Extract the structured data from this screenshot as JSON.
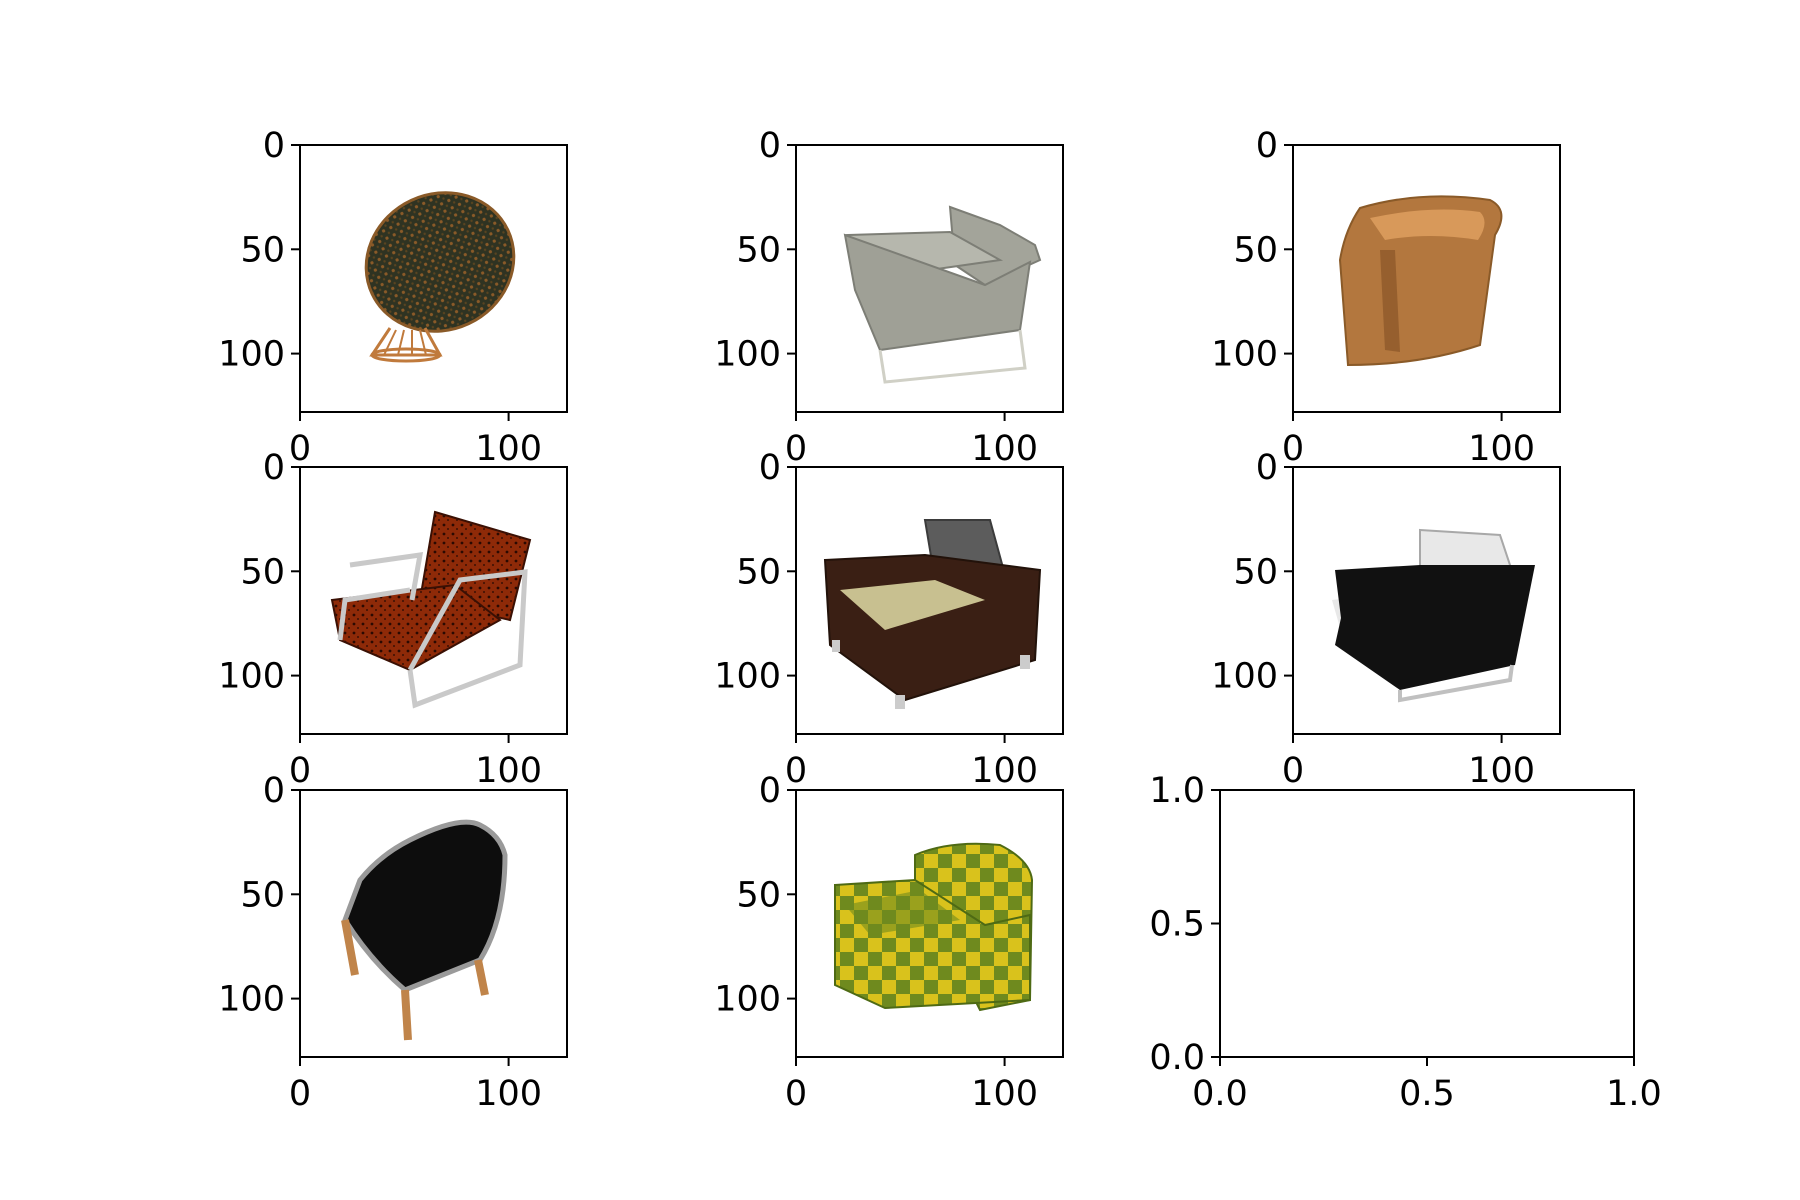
{
  "figure": {
    "background": "#ffffff",
    "axis_color": "#000000"
  },
  "chart_data": [
    {
      "type": "image",
      "content": "round papasan-style chair with dark mottled cushion on orange wire base",
      "colors": {
        "primary": "#2f3322",
        "accent": "#c07a3c"
      },
      "xlim": [
        0,
        128
      ],
      "ylim": [
        128,
        0
      ],
      "x_ticks": [
        0,
        100
      ],
      "x_tick_labels": [
        "0",
        "100"
      ],
      "y_ticks": [
        0,
        50,
        100
      ],
      "y_tick_labels": [
        "0",
        "50",
        "100"
      ]
    },
    {
      "type": "image",
      "content": "grey upholstered armchair on thin metal sled legs",
      "colors": {
        "primary": "#a3a49a",
        "accent": "#d0d0c6"
      },
      "xlim": [
        0,
        128
      ],
      "ylim": [
        128,
        0
      ],
      "x_ticks": [
        0,
        100
      ],
      "x_tick_labels": [
        "0",
        "100"
      ],
      "y_ticks": [
        0,
        50,
        100
      ],
      "y_tick_labels": [
        "0",
        "50",
        "100"
      ]
    },
    {
      "type": "image",
      "content": "orange-brown curved tub chair",
      "colors": {
        "primary": "#b3773e",
        "accent": "#d8995a"
      },
      "xlim": [
        0,
        128
      ],
      "ylim": [
        128,
        0
      ],
      "x_ticks": [
        0,
        100
      ],
      "x_tick_labels": [
        "0",
        "100"
      ],
      "y_ticks": [
        0,
        50,
        100
      ],
      "y_tick_labels": [
        "0",
        "50",
        "100"
      ]
    },
    {
      "type": "image",
      "content": "red patterned lounge chair with chrome tube frame",
      "colors": {
        "primary": "#8e2a08",
        "accent": "#c9c9c9"
      },
      "xlim": [
        0,
        128
      ],
      "ylim": [
        128,
        0
      ],
      "x_ticks": [
        0,
        100
      ],
      "x_tick_labels": [
        "0",
        "100"
      ],
      "y_ticks": [
        0,
        50,
        100
      ],
      "y_tick_labels": [
        "0",
        "50",
        "100"
      ]
    },
    {
      "type": "image",
      "content": "dark brown boxy club chair with beige seat and grey cushion",
      "colors": {
        "primary": "#3a1f14",
        "accent": "#c8c090"
      },
      "xlim": [
        0,
        128
      ],
      "ylim": [
        128,
        0
      ],
      "x_ticks": [
        0,
        100
      ],
      "x_tick_labels": [
        "0",
        "100"
      ],
      "y_ticks": [
        0,
        50,
        100
      ],
      "y_tick_labels": [
        "0",
        "50",
        "100"
      ]
    },
    {
      "type": "image",
      "content": "black and white modern armchair on metal runners",
      "colors": {
        "primary": "#111111",
        "accent": "#e8e8e8"
      },
      "xlim": [
        0,
        128
      ],
      "ylim": [
        128,
        0
      ],
      "x_ticks": [
        0,
        100
      ],
      "x_tick_labels": [
        "0",
        "100"
      ],
      "y_ticks": [
        0,
        50,
        100
      ],
      "y_tick_labels": [
        "0",
        "50",
        "100"
      ]
    },
    {
      "type": "image",
      "content": "black tub armchair with grey piping on wooden legs",
      "colors": {
        "primary": "#0d0d0d",
        "accent": "#c0844a"
      },
      "xlim": [
        0,
        128
      ],
      "ylim": [
        128,
        0
      ],
      "x_ticks": [
        0,
        100
      ],
      "x_tick_labels": [
        "0",
        "100"
      ],
      "y_ticks": [
        0,
        50,
        100
      ],
      "y_tick_labels": [
        "0",
        "50",
        "100"
      ]
    },
    {
      "type": "image",
      "content": "yellow and green checkered armchair",
      "colors": {
        "primary": "#d9c21c",
        "accent": "#5e7a1e"
      },
      "xlim": [
        0,
        128
      ],
      "ylim": [
        128,
        0
      ],
      "x_ticks": [
        0,
        100
      ],
      "x_tick_labels": [
        "0",
        "100"
      ],
      "y_ticks": [
        0,
        50,
        100
      ],
      "y_tick_labels": [
        "0",
        "50",
        "100"
      ]
    },
    {
      "type": "empty",
      "xlim": [
        0.0,
        1.0
      ],
      "ylim": [
        0.0,
        1.0
      ],
      "x_ticks": [
        0.0,
        0.5,
        1.0
      ],
      "x_tick_labels": [
        "0.0",
        "0.5",
        "1.0"
      ],
      "y_ticks": [
        0.0,
        0.5,
        1.0
      ],
      "y_tick_labels": [
        "0.0",
        "0.5",
        "1.0"
      ]
    }
  ]
}
